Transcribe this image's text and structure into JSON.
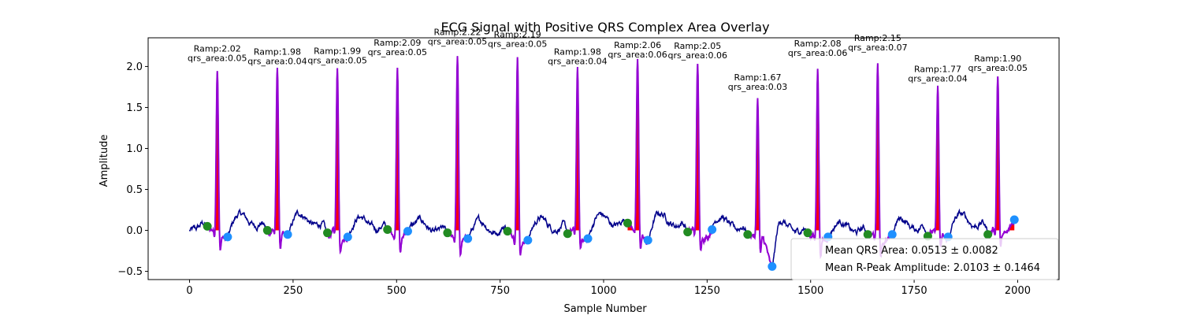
{
  "chart_data": {
    "type": "line",
    "title": "ECG Signal with Positive QRS Complex Area Overlay",
    "xlabel": "Sample Number",
    "ylabel": "Amplitude",
    "xlim": [
      -100,
      2100
    ],
    "ylim": [
      -0.6,
      2.35
    ],
    "xticks": [
      0,
      250,
      500,
      750,
      1000,
      1250,
      1500,
      1750,
      2000
    ],
    "yticks": [
      -0.5,
      0.0,
      0.5,
      1.0,
      1.5,
      2.0
    ],
    "ytick_labels": [
      "−0.5",
      "0.0",
      "0.5",
      "1.0",
      "1.5",
      "2.0"
    ],
    "grid": false,
    "colors": {
      "signal": "#00008b",
      "qrs_line": "#9400d3",
      "qrs_fill": "#ff0000",
      "onset": "#228b22",
      "offset": "#1e90ff"
    },
    "r_peaks": [
      {
        "x": 67,
        "amp": 2.02,
        "area": 0.05,
        "label1": "Ramp:2.02",
        "label2": "qrs_area:0.05"
      },
      {
        "x": 212,
        "amp": 1.98,
        "area": 0.04,
        "label1": "Ramp:1.98",
        "label2": "qrs_area:0.04"
      },
      {
        "x": 357,
        "amp": 1.99,
        "area": 0.05,
        "label1": "Ramp:1.99",
        "label2": "qrs_area:0.05"
      },
      {
        "x": 502,
        "amp": 2.09,
        "area": 0.05,
        "label1": "Ramp:2.09",
        "label2": "qrs_area:0.05"
      },
      {
        "x": 647,
        "amp": 2.22,
        "area": 0.05,
        "label1": "Ramp:2.22",
        "label2": "qrs_area:0.05"
      },
      {
        "x": 792,
        "amp": 2.19,
        "area": 0.05,
        "label1": "Ramp:2.19",
        "label2": "qrs_area:0.05"
      },
      {
        "x": 937,
        "amp": 1.98,
        "area": 0.04,
        "label1": "Ramp:1.98",
        "label2": "qrs_area:0.04"
      },
      {
        "x": 1082,
        "amp": 2.06,
        "area": 0.06,
        "label1": "Ramp:2.06",
        "label2": "qrs_area:0.06"
      },
      {
        "x": 1227,
        "amp": 2.05,
        "area": 0.06,
        "label1": "Ramp:2.05",
        "label2": "qrs_area:0.06"
      },
      {
        "x": 1372,
        "amp": 1.67,
        "area": 0.03,
        "label1": "Ramp:1.67",
        "label2": "qrs_area:0.03"
      },
      {
        "x": 1517,
        "amp": 2.08,
        "area": 0.06,
        "label1": "Ramp:2.08",
        "label2": "qrs_area:0.06"
      },
      {
        "x": 1662,
        "amp": 2.15,
        "area": 0.07,
        "label1": "Ramp:2.15",
        "label2": "qrs_area:0.07"
      },
      {
        "x": 1807,
        "amp": 1.77,
        "area": 0.04,
        "label1": "Ramp:1.77",
        "label2": "qrs_area:0.04"
      },
      {
        "x": 1952,
        "amp": 1.9,
        "area": 0.05,
        "label1": "Ramp:1.90",
        "label2": "qrs_area:0.05"
      }
    ],
    "onsets": [
      {
        "x": 43,
        "y": 0.05
      },
      {
        "x": 188,
        "y": 0.0
      },
      {
        "x": 333,
        "y": -0.03
      },
      {
        "x": 478,
        "y": 0.01
      },
      {
        "x": 623,
        "y": -0.03
      },
      {
        "x": 768,
        "y": -0.01
      },
      {
        "x": 913,
        "y": -0.04
      },
      {
        "x": 1058,
        "y": 0.09
      },
      {
        "x": 1203,
        "y": -0.02
      },
      {
        "x": 1348,
        "y": -0.05
      },
      {
        "x": 1493,
        "y": -0.03
      },
      {
        "x": 1638,
        "y": -0.05
      },
      {
        "x": 1783,
        "y": -0.07
      },
      {
        "x": 1928,
        "y": -0.05
      }
    ],
    "offsets": [
      {
        "x": 92,
        "y": -0.08
      },
      {
        "x": 237,
        "y": -0.05
      },
      {
        "x": 382,
        "y": -0.08
      },
      {
        "x": 527,
        "y": -0.01
      },
      {
        "x": 672,
        "y": -0.1
      },
      {
        "x": 817,
        "y": -0.12
      },
      {
        "x": 962,
        "y": -0.1
      },
      {
        "x": 1107,
        "y": -0.12
      },
      {
        "x": 1262,
        "y": 0.01
      },
      {
        "x": 1407,
        "y": -0.44
      },
      {
        "x": 1542,
        "y": -0.08
      },
      {
        "x": 1697,
        "y": -0.05
      },
      {
        "x": 1832,
        "y": -0.08
      },
      {
        "x": 1992,
        "y": 0.13
      }
    ],
    "legend": {
      "placement": "lower-right",
      "entries": [
        "Mean QRS Area: 0.0513 ± 0.0082",
        "Mean R-Peak Amplitude: 2.0103 ± 0.1464"
      ]
    }
  }
}
